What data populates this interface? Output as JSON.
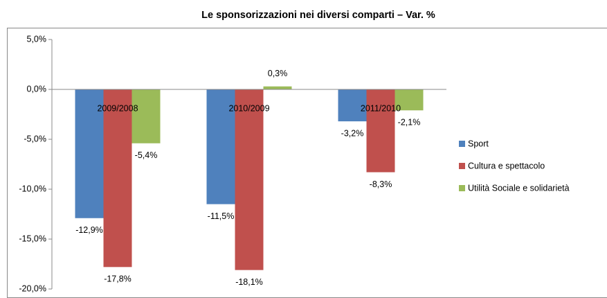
{
  "chart_data": {
    "type": "bar",
    "title": "Le sponsorizzazioni nei diversi comparti – Var. %",
    "categories": [
      "2009/2008",
      "2010/2009",
      "2011/2010"
    ],
    "series": [
      {
        "name": "Sport",
        "color": "#4f81bd",
        "values": [
          -12.9,
          -11.5,
          -3.2
        ],
        "value_labels": [
          "-12,9%",
          "-11,5%",
          "-3,2%"
        ]
      },
      {
        "name": "Cultura e spettacolo",
        "color": "#c0504d",
        "values": [
          -17.8,
          -18.1,
          -8.3
        ],
        "value_labels": [
          "-17,8%",
          "-18,1%",
          "-8,3%"
        ]
      },
      {
        "name": "Utilità Sociale e solidarietà",
        "color": "#9bbb59",
        "values": [
          -5.4,
          0.3,
          -2.1
        ],
        "value_labels": [
          "-5,4%",
          "0,3%",
          "-2,1%"
        ]
      }
    ],
    "ylim": [
      -20,
      5
    ],
    "yticks": [
      {
        "value": -20,
        "label": "-20,0%"
      },
      {
        "value": -15,
        "label": "-15,0%"
      },
      {
        "value": -10,
        "label": "-10,0%"
      },
      {
        "value": -5,
        "label": "-5,0%"
      },
      {
        "value": 0,
        "label": "0,0%"
      },
      {
        "value": 5,
        "label": "5,0%"
      }
    ],
    "grid": false,
    "legend": "right"
  }
}
